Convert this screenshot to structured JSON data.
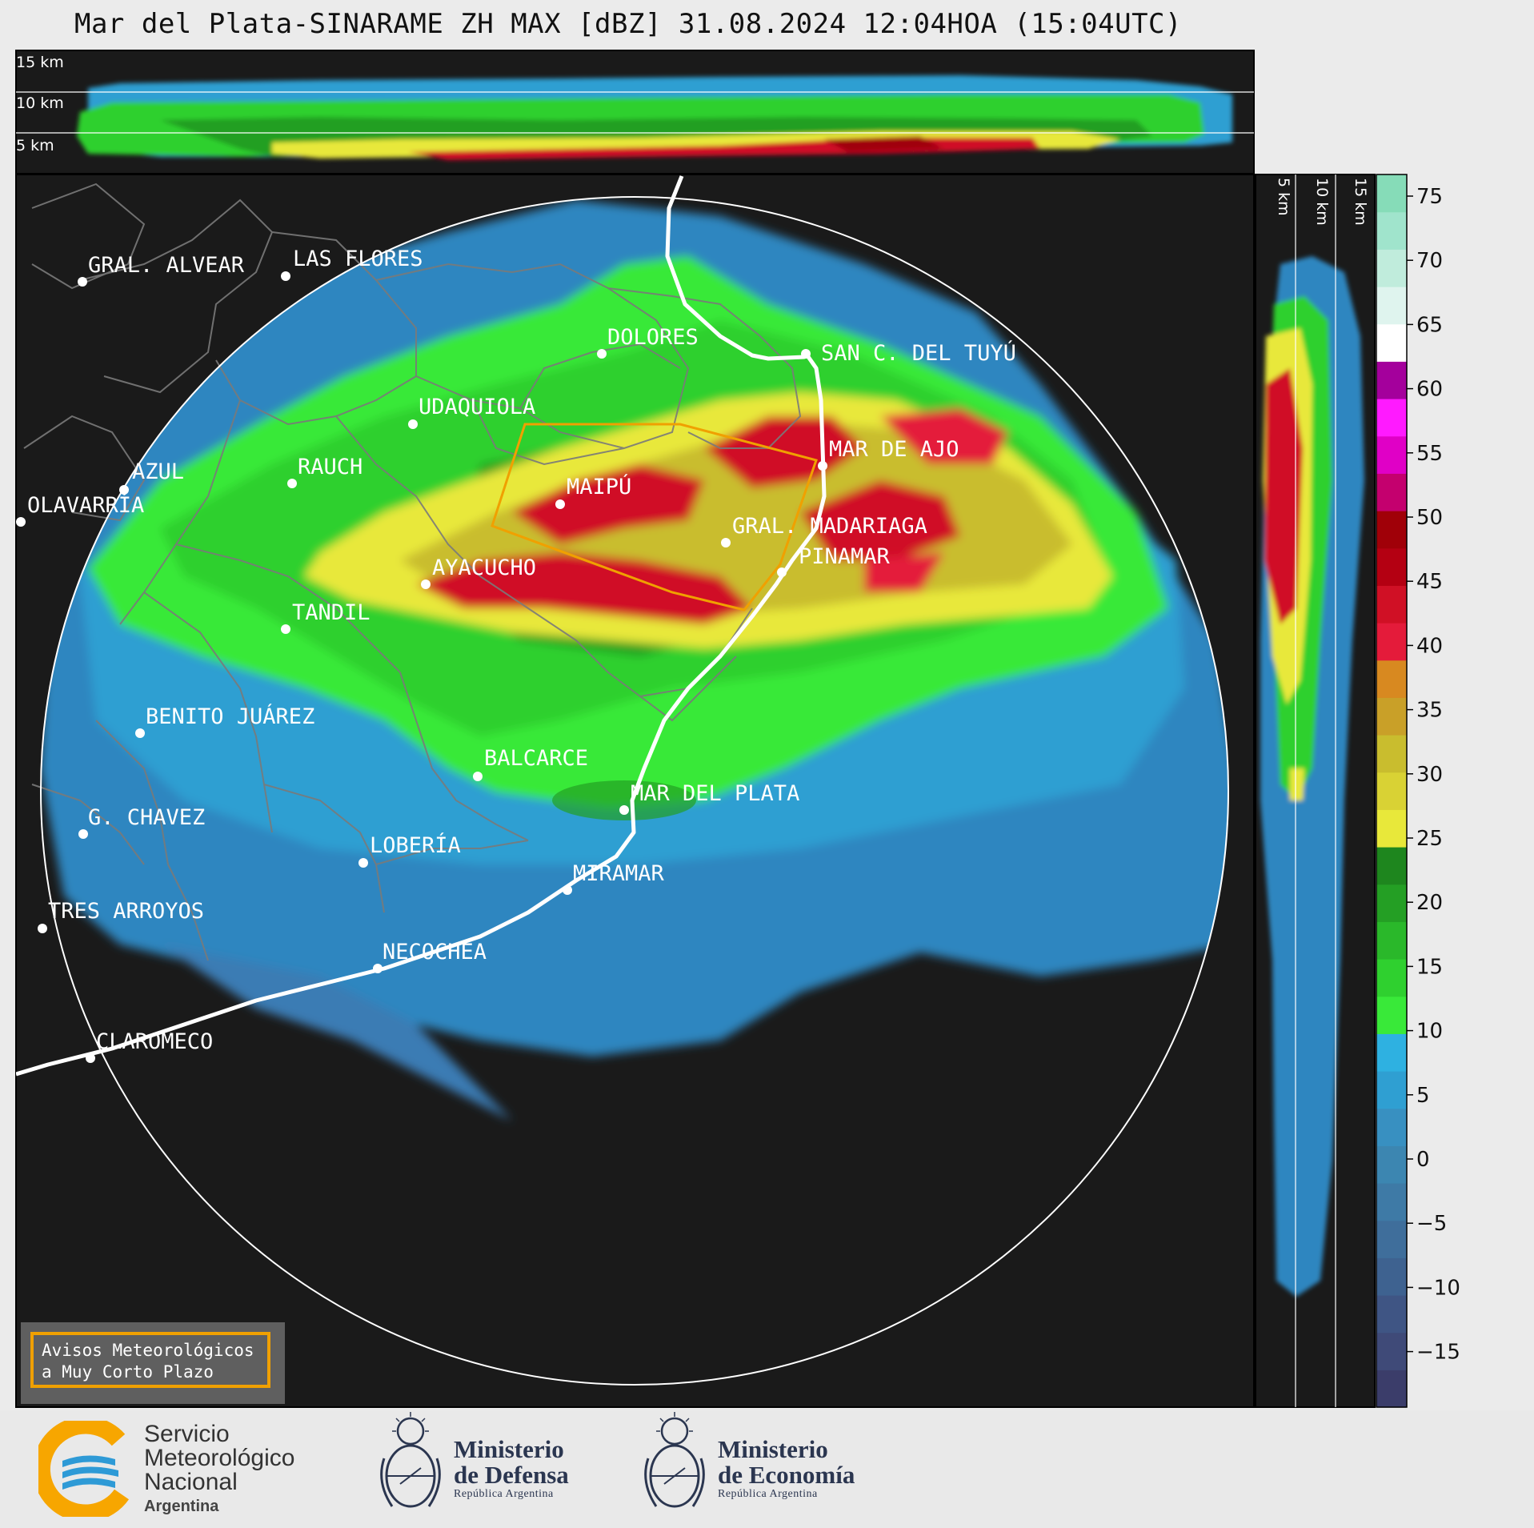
{
  "header": {
    "title": "Mar del Plata-SINARAME ZH MAX [dBZ] 31.08.2024 12:04HOA (15:04UTC)"
  },
  "height_axis": {
    "top_labels": [
      "15 km",
      "10 km",
      "5 km"
    ],
    "side_labels": [
      "5 km",
      "10 km",
      "15 km"
    ]
  },
  "colorbar": {
    "unit": "dBZ",
    "ticks": [
      "75",
      "70",
      "65",
      "60",
      "55",
      "50",
      "45",
      "40",
      "35",
      "30",
      "25",
      "20",
      "15",
      "10",
      "5",
      "0",
      "−5",
      "−10",
      "−15"
    ],
    "colors": [
      "#3b3d6a",
      "#3f4a78",
      "#3f5584",
      "#3e6290",
      "#3f6e9b",
      "#3e7aa6",
      "#3c86b1",
      "#3890c1",
      "#2f9fd2",
      "#2eb1e1",
      "#39e939",
      "#2fd02f",
      "#2ab82a",
      "#249f24",
      "#1e861e",
      "#e8e83a",
      "#d9d234",
      "#c9bd2e",
      "#c9a028",
      "#d88920",
      "#e41b3a",
      "#d01025",
      "#b40012",
      "#a00008",
      "#c4006e",
      "#e000c6",
      "#ff1aff",
      "#a4009c",
      "#ffffff",
      "#dff4ee",
      "#c0ecdc",
      "#a0e4cc",
      "#86dcb8"
    ]
  },
  "map_labels": {
    "gral_alvear": "GRAL. ALVEAR",
    "las_flores": "LAS FLORES",
    "dolores": "DOLORES",
    "san_clemente": "SAN C. DEL TUYÚ",
    "udaquiola": "UDAQUIOLA",
    "mar_de_ajo": "MAR DE AJO",
    "azul": "AZUL",
    "rauch": "RAUCH",
    "maipu": "MAIPÚ",
    "olavarria": "OLAVARRÍA",
    "gral_madariaga": "GRAL. MADARIAGA",
    "pinamar": "PINAMAR",
    "ayacucho": "AYACUCHO",
    "tandil": "TANDIL",
    "benito_juarez": "BENITO JUÁREZ",
    "balcarce": "BALCARCE",
    "mar_del_plata": "MAR DEL PLATA",
    "g_chavez": "G. CHAVEZ",
    "loberia": "LOBERÍA",
    "miramar": "MIRAMAR",
    "tres_arroyos": "TRES ARROYOS",
    "necochea": "NECOCHEA",
    "claromeco": "CLAROMECO"
  },
  "warning_box": {
    "line1": "Avisos Meteorológicos",
    "line2": "a Muy Corto Plazo",
    "border_color": "#f0a000"
  },
  "footer": {
    "smn": {
      "line1": "Servicio",
      "line2": "Meteorológico",
      "line3": "Nacional",
      "line4": "Argentina"
    },
    "defensa": {
      "line1": "Ministerio",
      "line2": "de Defensa",
      "line3": "República Argentina"
    },
    "economia": {
      "line1": "Ministerio",
      "line2": "de Economía",
      "line3": "República Argentina"
    }
  }
}
